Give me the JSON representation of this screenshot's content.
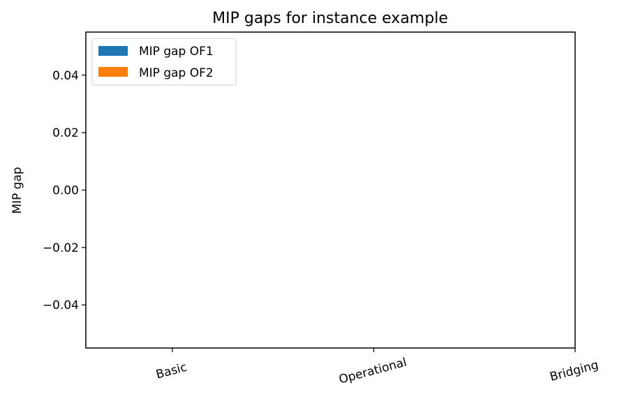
{
  "chart_data": {
    "type": "bar",
    "title": "MIP gaps for instance example",
    "xlabel": "",
    "ylabel": "MIP gap",
    "categories": [
      "Basic",
      "Operational",
      "Bridging"
    ],
    "series": [
      {
        "name": "MIP gap OF1",
        "color": "#1f77b4",
        "values": [
          0,
          0,
          0
        ]
      },
      {
        "name": "MIP gap OF2",
        "color": "#ff7f0e",
        "values": [
          0,
          0,
          0
        ]
      }
    ],
    "ylim": [
      -0.055,
      0.055
    ],
    "yticks": [
      "0.04",
      "0.02",
      "0.00",
      "−0.02",
      "−0.04"
    ],
    "ytick_values": [
      0.04,
      0.02,
      0.0,
      -0.02,
      -0.04
    ],
    "grid": false,
    "legend_position": "top-left",
    "xtick_rotation": "rotated"
  }
}
